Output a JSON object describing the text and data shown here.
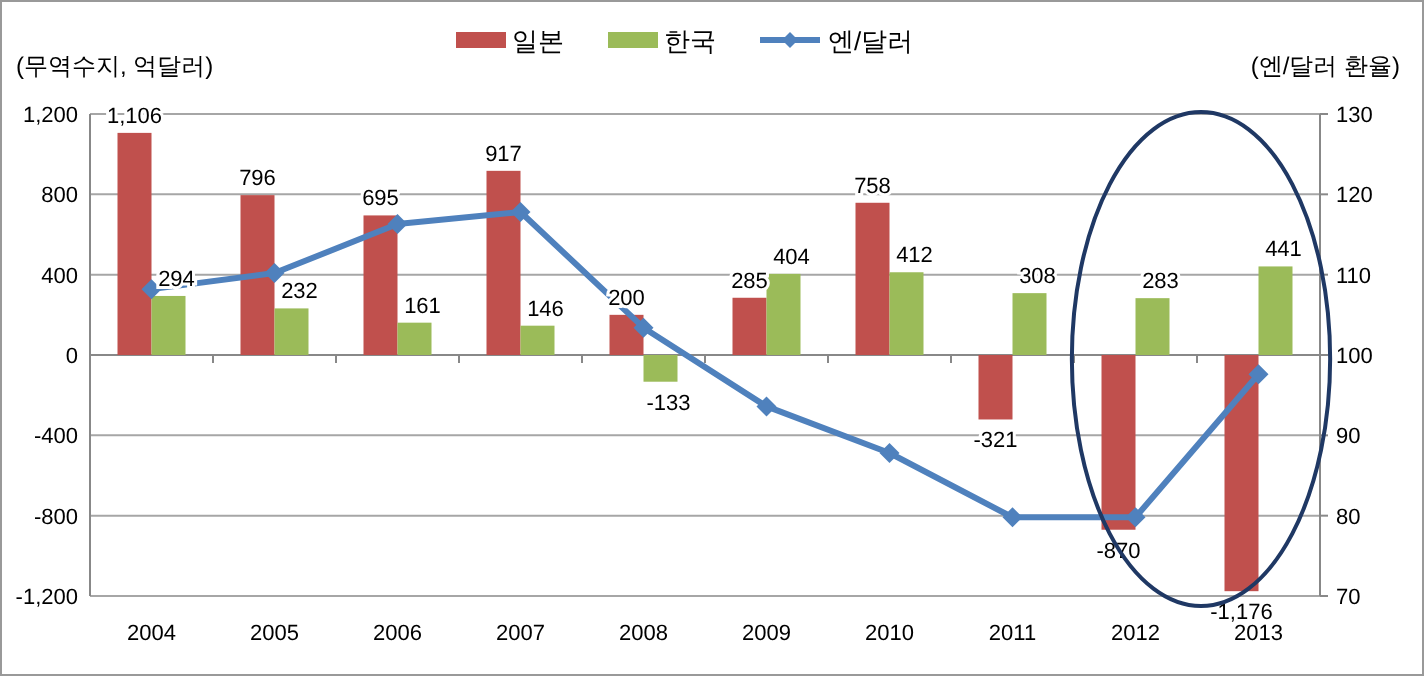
{
  "chart_data": {
    "type": "bar",
    "categories": [
      "2004",
      "2005",
      "2006",
      "2007",
      "2008",
      "2009",
      "2010",
      "2011",
      "2012",
      "2013"
    ],
    "ylabel": "(무역수지, 억달러)",
    "y2label": "(엔/달러 환율)",
    "series": [
      {
        "name": "일본",
        "color": "#c0504d",
        "values": [
          1106,
          796,
          695,
          917,
          200,
          285,
          758,
          -321,
          -870,
          -1176
        ],
        "value_labels": [
          "1,106",
          "796",
          "695",
          "917",
          "200",
          "285",
          "758",
          "-321",
          "-870",
          "-1,176"
        ]
      },
      {
        "name": "한국",
        "color": "#9bbb59",
        "values": [
          294,
          232,
          161,
          146,
          -133,
          404,
          412,
          308,
          283,
          441
        ],
        "value_labels": [
          "294",
          "232",
          "161",
          "146",
          "-133",
          "404",
          "412",
          "308",
          "283",
          "441"
        ]
      },
      {
        "name": "엔/달러",
        "type": "line",
        "axis": "y2",
        "color": "#4f81bd",
        "marker": "diamond",
        "values": [
          108.2,
          110.2,
          116.3,
          117.8,
          103.4,
          93.6,
          87.8,
          79.8,
          79.8,
          97.6
        ]
      }
    ],
    "ylim": [
      -1200,
      1200
    ],
    "yticks": [
      {
        "value": -1200,
        "label": "-1,200"
      },
      -800,
      -400,
      0,
      400,
      800,
      {
        "value": 1200,
        "label": "1,200"
      }
    ],
    "y2lim": [
      70,
      130
    ],
    "y2ticks": [
      70,
      80,
      90,
      100,
      110,
      120,
      130
    ],
    "grid": "y",
    "legend": "top"
  }
}
